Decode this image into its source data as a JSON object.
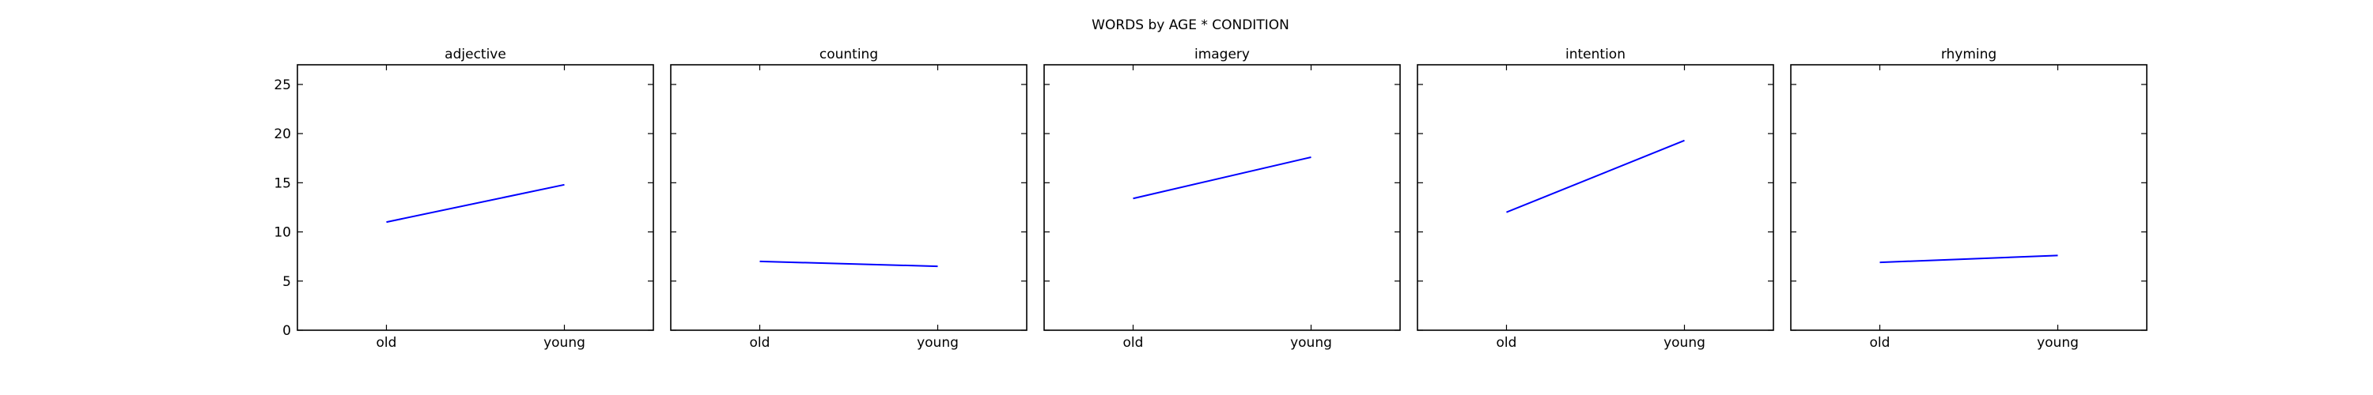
{
  "chart_data": {
    "type": "line",
    "title": "WORDS by AGE * CONDITION",
    "xlabel": "",
    "ylabel": "",
    "ylim": [
      0,
      27
    ],
    "yticks": [
      0,
      5,
      10,
      15,
      20,
      25
    ],
    "categories": [
      "old",
      "young"
    ],
    "grid": false,
    "line_color": "#0000ff",
    "panels": [
      {
        "title": "adjective",
        "values": [
          11.0,
          14.8
        ]
      },
      {
        "title": "counting",
        "values": [
          7.0,
          6.5
        ]
      },
      {
        "title": "imagery",
        "values": [
          13.4,
          17.6
        ]
      },
      {
        "title": "intention",
        "values": [
          12.0,
          19.3
        ]
      },
      {
        "title": "rhyming",
        "values": [
          6.9,
          7.6
        ]
      }
    ]
  }
}
